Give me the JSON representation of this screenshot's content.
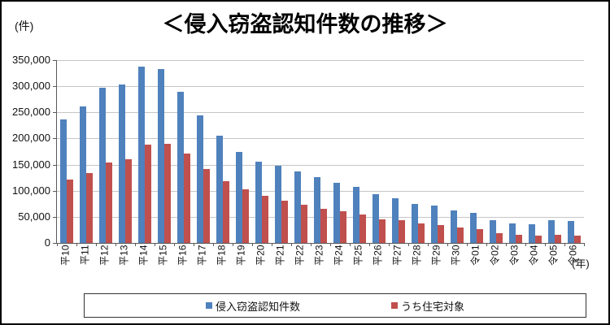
{
  "header": {
    "unit_label": "(件)",
    "title": "＜侵入窃盗認知件数の推移＞",
    "x_axis_unit": "(年)"
  },
  "chart_data": {
    "type": "bar",
    "title": "＜侵入窃盗認知件数の推移＞",
    "ylabel": "(件)",
    "xlabel": "(年)",
    "grid": "horizontal",
    "legend_position": "bottom-box",
    "ylim": [
      0,
      350000
    ],
    "y_tick_step": 50000,
    "y_ticks": [
      "0",
      "50,000",
      "100,000",
      "150,000",
      "200,000",
      "250,000",
      "300,000",
      "350,000"
    ],
    "categories": [
      "平10",
      "平11",
      "平12",
      "平13",
      "平14",
      "平15",
      "平16",
      "平17",
      "平18",
      "平19",
      "平20",
      "平21",
      "平22",
      "平23",
      "平24",
      "平25",
      "平26",
      "平27",
      "平28",
      "平29",
      "平30",
      "令01",
      "令02",
      "令03",
      "令04",
      "令05",
      "令06"
    ],
    "series": [
      {
        "name": "侵入窃盗認知件数",
        "color": "#4F81BD",
        "values": [
          237000,
          261000,
          297000,
          304000,
          338000,
          333000,
          290000,
          245000,
          205000,
          175000,
          156000,
          148000,
          137000,
          126000,
          115000,
          107000,
          93000,
          85000,
          75000,
          72000,
          62000,
          57000,
          44000,
          37000,
          36000,
          44000,
          42000
        ]
      },
      {
        "name": "うち住宅対象",
        "color": "#C0504D",
        "values": [
          122000,
          134000,
          154000,
          161000,
          189000,
          190000,
          171000,
          142000,
          119000,
          103000,
          90000,
          81000,
          73000,
          66000,
          60000,
          55000,
          45000,
          43000,
          37000,
          34000,
          30000,
          27000,
          19000,
          15000,
          14000,
          16000,
          14000
        ]
      }
    ]
  }
}
